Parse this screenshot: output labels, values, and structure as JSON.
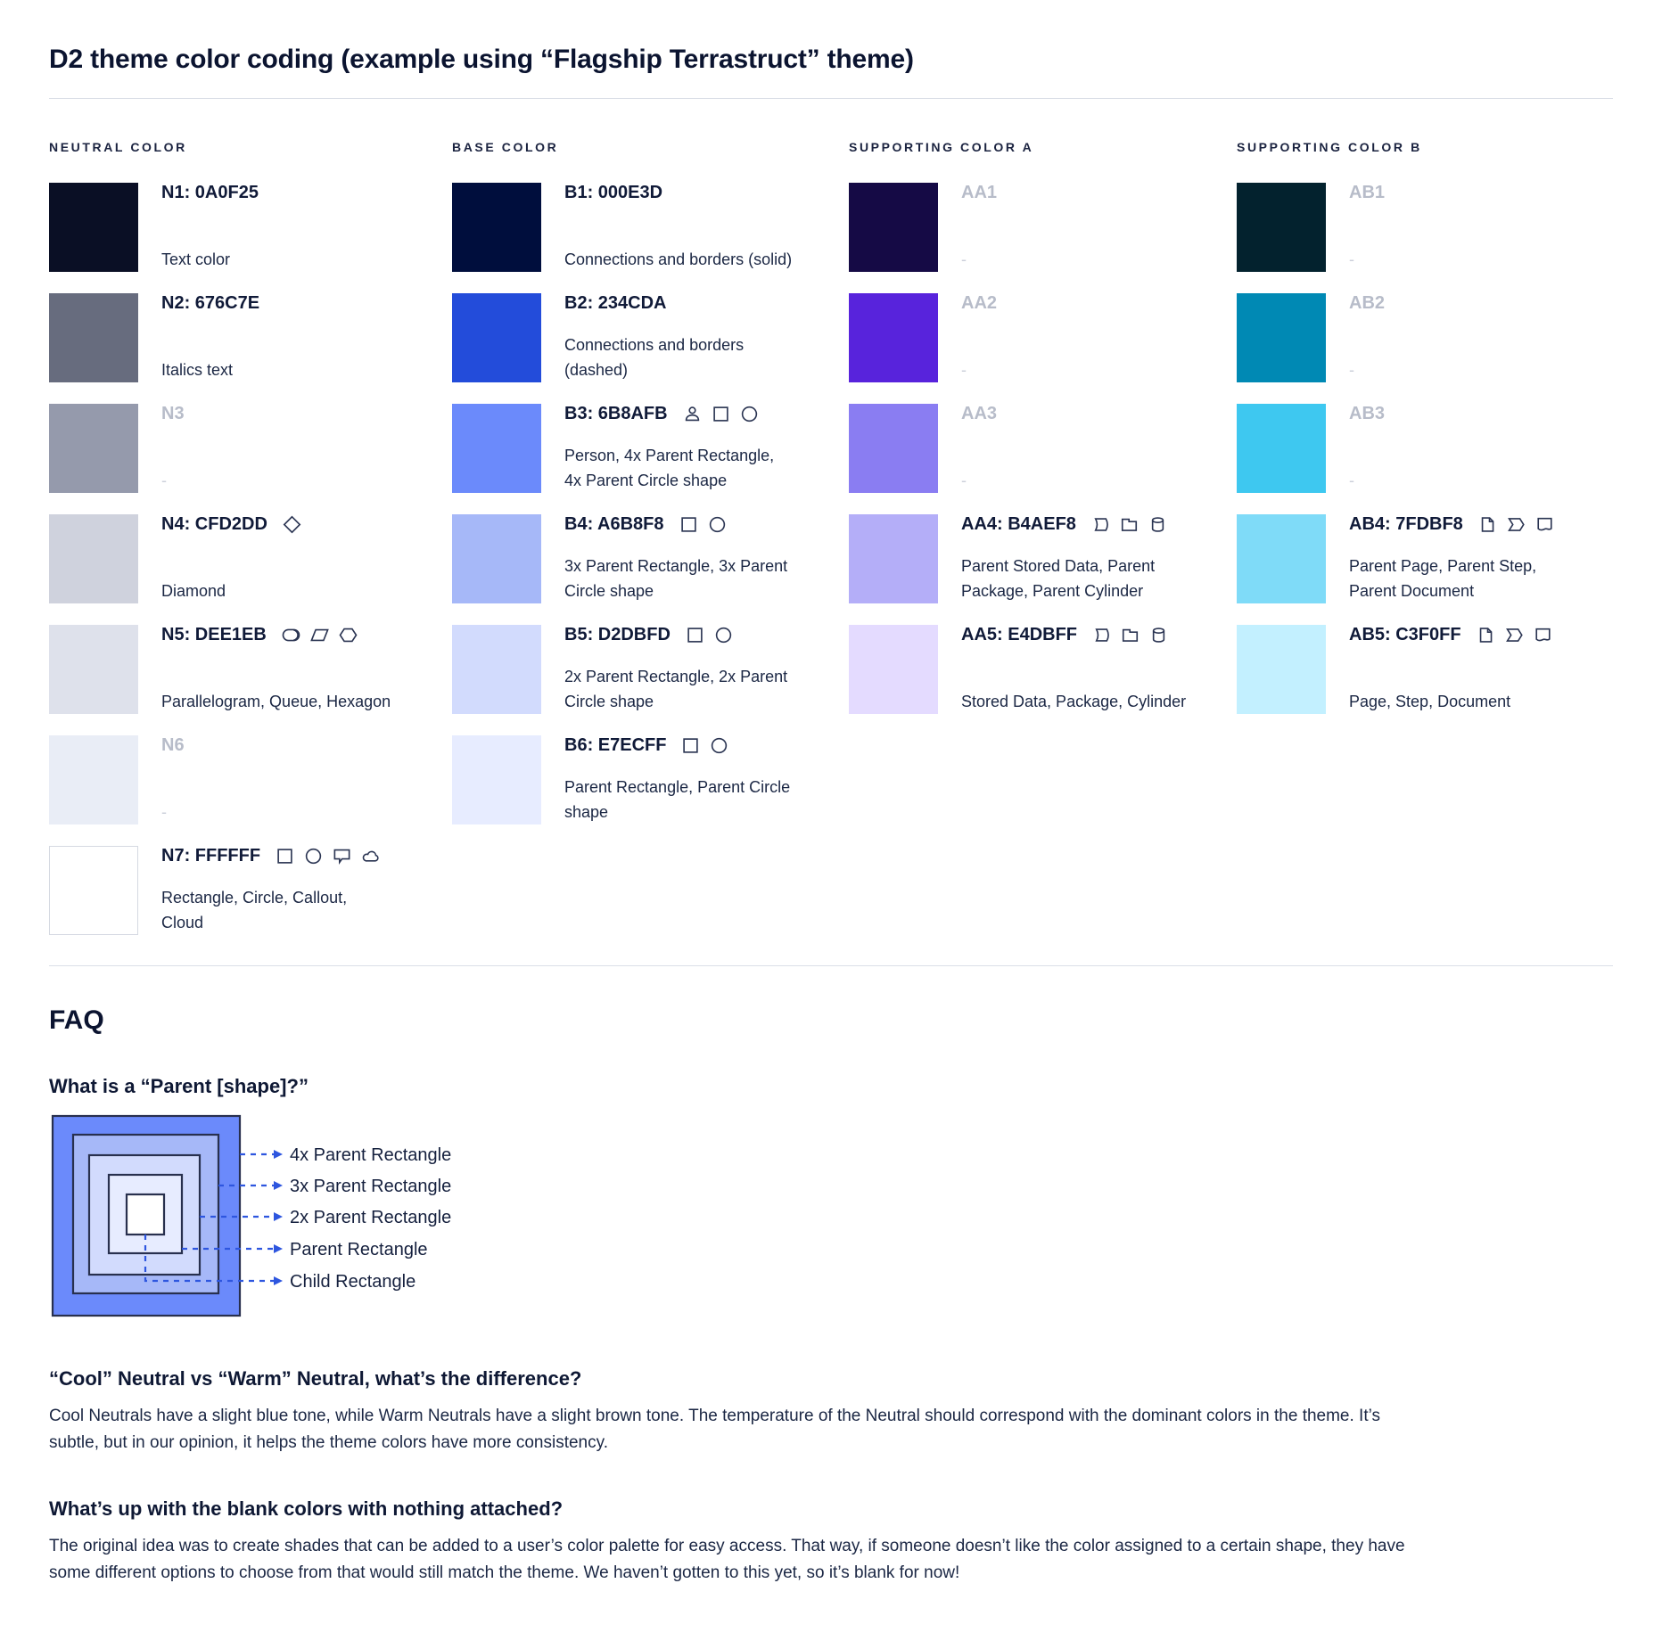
{
  "page": {
    "title": "D2 theme color coding (example using “Flagship Terrastruct” theme)"
  },
  "palette": {
    "columns": [
      {
        "header": "NEUTRAL COLOR",
        "items": [
          {
            "title": "N1: 0A0F25",
            "color": "#0A0F25",
            "desc": "Text color",
            "icons": [],
            "muted": false
          },
          {
            "title": "N2: 676C7E",
            "color": "#676C7E",
            "desc": "Italics text",
            "icons": [],
            "muted": false
          },
          {
            "title": "N3",
            "color": "#959AAC",
            "desc": "-",
            "icons": [],
            "muted": true
          },
          {
            "title": "N4: CFD2DD",
            "color": "#CFD2DD",
            "desc": "Diamond",
            "icons": [
              "diamond-icon"
            ],
            "muted": false
          },
          {
            "title": "N5: DEE1EB",
            "color": "#DEE1EB",
            "desc": "Parallelogram, Queue, Hexagon",
            "icons": [
              "queue-icon",
              "parallelogram-icon",
              "hexagon-icon"
            ],
            "muted": false
          },
          {
            "title": "N6",
            "color": "#E9EDF6",
            "desc": "-",
            "icons": [],
            "muted": true
          },
          {
            "title": "N7: FFFFFF",
            "color": "#FFFFFF",
            "desc": "Rectangle, Circle, Callout, Cloud",
            "icons": [
              "rectangle-icon",
              "circle-icon",
              "callout-icon",
              "cloud-icon"
            ],
            "muted": false
          }
        ]
      },
      {
        "header": "BASE COLOR",
        "items": [
          {
            "title": "B1: 000E3D",
            "color": "#000E3D",
            "desc": "Connections and borders (solid)",
            "icons": [],
            "muted": false
          },
          {
            "title": "B2: 234CDA",
            "color": "#234CDA",
            "desc": "Connections and borders (dashed)",
            "icons": [],
            "muted": false
          },
          {
            "title": "B3: 6B8AFB",
            "color": "#6B8AFB",
            "desc": "Person, 4x Parent Rectangle, 4x Parent Circle shape",
            "icons": [
              "person-icon",
              "rectangle-icon",
              "circle-icon"
            ],
            "muted": false
          },
          {
            "title": "B4: A6B8F8",
            "color": "#A6B8F8",
            "desc": "3x Parent Rectangle, 3x Parent Circle shape",
            "icons": [
              "rectangle-icon",
              "circle-icon"
            ],
            "muted": false
          },
          {
            "title": "B5: D2DBFD",
            "color": "#D2DBFD",
            "desc": "2x Parent Rectangle, 2x Parent Circle shape",
            "icons": [
              "rectangle-icon",
              "circle-icon"
            ],
            "muted": false
          },
          {
            "title": "B6: E7ECFF",
            "color": "#E7ECFF",
            "desc": "Parent Rectangle, Parent Circle shape",
            "icons": [
              "rectangle-icon",
              "circle-icon"
            ],
            "muted": false
          }
        ]
      },
      {
        "header": "SUPPORTING COLOR A",
        "items": [
          {
            "title": "AA1",
            "color": "#150A45",
            "desc": "-",
            "icons": [],
            "muted": true
          },
          {
            "title": "AA2",
            "color": "#5823DC",
            "desc": "-",
            "icons": [],
            "muted": true
          },
          {
            "title": "AA3",
            "color": "#8A7DF2",
            "desc": "-",
            "icons": [],
            "muted": true
          },
          {
            "title": "AA4: B4AEF8",
            "color": "#B4AEF8",
            "desc": "Parent Stored Data, Parent Package, Parent Cylinder",
            "icons": [
              "stored-data-icon",
              "package-icon",
              "cylinder-icon"
            ],
            "muted": false
          },
          {
            "title": "AA5: E4DBFF",
            "color": "#E4DBFF",
            "desc": "Stored Data, Package, Cylinder",
            "icons": [
              "stored-data-icon",
              "package-icon",
              "cylinder-icon"
            ],
            "muted": false
          }
        ]
      },
      {
        "header": "SUPPORTING COLOR B",
        "items": [
          {
            "title": "AB1",
            "color": "#03222E",
            "desc": "-",
            "icons": [],
            "muted": true
          },
          {
            "title": "AB2",
            "color": "#0089B4",
            "desc": "-",
            "icons": [],
            "muted": true
          },
          {
            "title": "AB3",
            "color": "#3EC8F0",
            "desc": "-",
            "icons": [],
            "muted": true
          },
          {
            "title": "AB4: 7FDBF8",
            "color": "#7FDBF8",
            "desc": "Parent Page, Parent Step, Parent Document",
            "icons": [
              "page-icon",
              "step-icon",
              "document-icon"
            ],
            "muted": false
          },
          {
            "title": "AB5: C3F0FF",
            "color": "#C3F0FF",
            "desc": "Page, Step, Document",
            "icons": [
              "page-icon",
              "step-icon",
              "document-icon"
            ],
            "muted": false
          }
        ]
      }
    ]
  },
  "faq": {
    "heading": "FAQ",
    "q1": {
      "question": "What is a “Parent [shape]?”",
      "labels": [
        "4x Parent Rectangle",
        "3x Parent Rectangle",
        "2x Parent Rectangle",
        "Parent Rectangle",
        "Child Rectangle"
      ]
    },
    "diagram": {
      "box_colors": [
        "#6B8AFB",
        "#A6B8F8",
        "#D2DBFD",
        "#E7ECFF",
        "#FFFFFF"
      ],
      "connector_color": "#2E56DF",
      "border_color": "#28304E"
    },
    "q2": {
      "question": "“Cool” Neutral vs “Warm” Neutral, what’s the difference?",
      "body": "Cool Neutrals have a slight blue tone, while Warm Neutrals have a slight brown tone. The temperature of the Neutral should correspond with the dominant colors in the theme. It’s subtle, but in our opinion, it helps the theme colors have more consistency."
    },
    "q3": {
      "question": "What’s up with the blank colors with nothing attached?",
      "body": "The original idea was to create shades that can be added to a user’s color palette for easy access. That way, if someone doesn’t like the color assigned to a certain shape, they have some different options to choose from that would still match the theme. We haven’t gotten to this yet, so it’s blank for now!"
    }
  }
}
